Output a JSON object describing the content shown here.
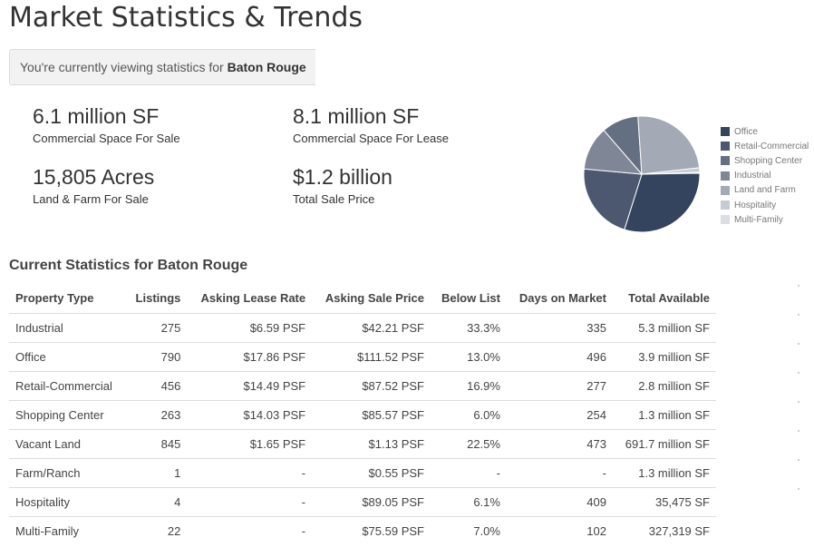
{
  "page": {
    "title": "Market Statistics & Trends",
    "viewing_prefix": "You're currently viewing statistics for ",
    "viewing_location": "Baton Rouge"
  },
  "stats": [
    {
      "value": "6.1 million SF",
      "label": "Commercial Space For Sale"
    },
    {
      "value": "8.1 million SF",
      "label": "Commercial Space For Lease"
    },
    {
      "value": "15,805 Acres",
      "label": "Land & Farm For Sale"
    },
    {
      "value": "$1.2 billion",
      "label": "Total Sale Price"
    }
  ],
  "chart_data": {
    "type": "pie",
    "title": "",
    "categories": [
      "Office",
      "Retail-Commercial",
      "Shopping Center",
      "Industrial",
      "Land and Farm",
      "Hospitality",
      "Multi-Family"
    ],
    "values": [
      30.1,
      21.6,
      10.3,
      12.2,
      24.3,
      1.2,
      0.3
    ],
    "colors": [
      "#34445e",
      "#4b5870",
      "#656f82",
      "#7f8797",
      "#a3a9b5",
      "#c6cad2",
      "#dadde2"
    ],
    "legend_position": "right"
  },
  "table": {
    "title": "Current Statistics for Baton Rouge",
    "columns": [
      "Property Type",
      "Listings",
      "Asking Lease Rate",
      "Asking Sale Price",
      "Below List",
      "Days on Market",
      "Total Available"
    ],
    "rows": [
      [
        "Industrial",
        "275",
        "$6.59 PSF",
        "$42.21 PSF",
        "33.3%",
        "335",
        "5.3 million SF"
      ],
      [
        "Office",
        "790",
        "$17.86 PSF",
        "$111.52 PSF",
        "13.0%",
        "496",
        "3.9 million SF"
      ],
      [
        "Retail-Commercial",
        "456",
        "$14.49 PSF",
        "$87.52 PSF",
        "16.9%",
        "277",
        "2.8 million SF"
      ],
      [
        "Shopping Center",
        "263",
        "$14.03 PSF",
        "$85.57 PSF",
        "6.0%",
        "254",
        "1.3 million SF"
      ],
      [
        "Vacant Land",
        "845",
        "$1.65 PSF",
        "$1.13 PSF",
        "22.5%",
        "473",
        "691.7 million SF"
      ],
      [
        "Farm/Ranch",
        "1",
        "-",
        "$0.55 PSF",
        "-",
        "-",
        "1.3 million SF"
      ],
      [
        "Hospitality",
        "4",
        "-",
        "$89.05 PSF",
        "6.1%",
        "409",
        "35,475 SF"
      ],
      [
        "Multi-Family",
        "22",
        "-",
        "$75.59 PSF",
        "7.0%",
        "102",
        "327,319 SF"
      ]
    ]
  }
}
